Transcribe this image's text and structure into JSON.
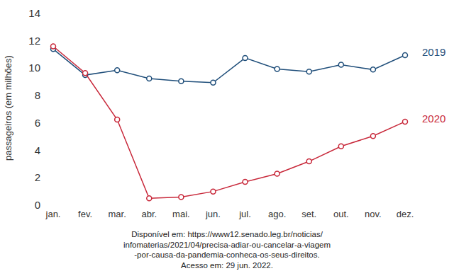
{
  "chart_data": {
    "type": "line",
    "y_label": "passageiros (em milhões)",
    "categories": [
      "jan.",
      "fev.",
      "mar.",
      "abr.",
      "mai.",
      "jun.",
      "jul.",
      "ago.",
      "set.",
      "out.",
      "nov.",
      "dez."
    ],
    "series": [
      {
        "name": "2019",
        "color": "#1f4e7a",
        "marker": "circle",
        "values": [
          11.4,
          9.5,
          9.85,
          9.25,
          9.05,
          8.95,
          10.75,
          9.95,
          9.75,
          10.25,
          9.9,
          10.95
        ]
      },
      {
        "name": "2020",
        "color": "#c8283a",
        "marker": "circle",
        "values": [
          11.6,
          9.65,
          6.25,
          0.5,
          0.6,
          1.0,
          1.7,
          2.3,
          3.2,
          4.3,
          5.05,
          6.1
        ]
      }
    ],
    "ylim": [
      0,
      14
    ],
    "yticks": [
      0,
      2,
      4,
      6,
      8,
      10,
      12,
      14
    ],
    "grid": false,
    "legend": "right",
    "source": [
      "Disponível em: https://www12.senado.leg.br/noticias/",
      "infomaterias/2021/04/precisa-adiar-ou-cancelar-a-viagem",
      "-por-causa-da-pandemia-conheca-os-seus-direitos.",
      "Acesso em: 29 jun. 2022."
    ]
  }
}
